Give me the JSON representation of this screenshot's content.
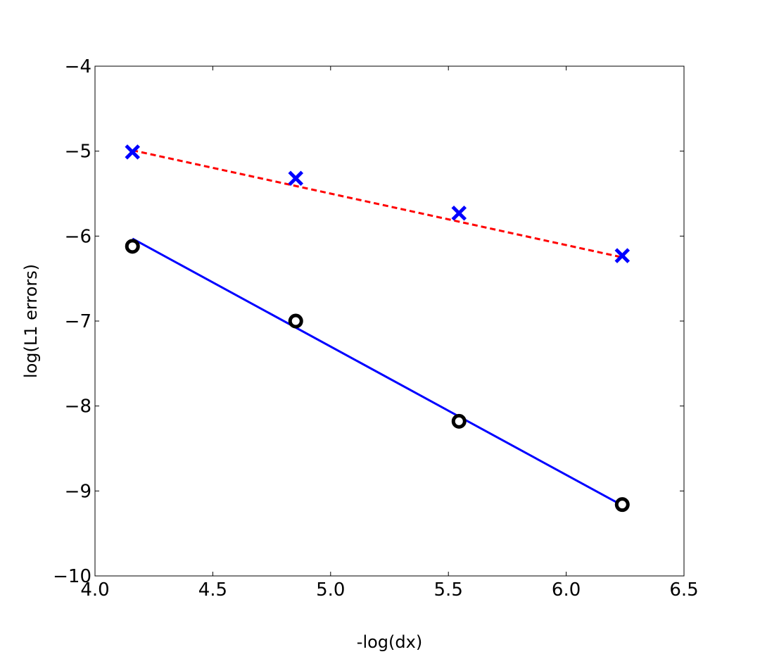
{
  "chart_data": {
    "type": "line",
    "title": "",
    "xlabel": "-log(dx)",
    "ylabel": "log(L1 errors)",
    "xlim": [
      4.0,
      6.5
    ],
    "ylim": [
      -10,
      -4
    ],
    "xticks": [
      "4.0",
      "4.5",
      "5.0",
      "5.5",
      "6.0",
      "6.5"
    ],
    "xtick_values": [
      4.0,
      4.5,
      5.0,
      5.5,
      6.0,
      6.5
    ],
    "yticks": [
      "−10",
      "−9",
      "−8",
      "−7",
      "−6",
      "−5",
      "−4"
    ],
    "ytick_values": [
      -10,
      -9,
      -8,
      -7,
      -6,
      -5,
      -4
    ],
    "grid": false,
    "legend": "none",
    "series": [
      {
        "kind": "markers",
        "marker": "x",
        "color": "#0000ff",
        "x": [
          4.159,
          4.852,
          5.545,
          6.238
        ],
        "y": [
          -5.01,
          -5.32,
          -5.73,
          -6.23
        ]
      },
      {
        "kind": "line",
        "style": "dashed",
        "color": "#ff0000",
        "x": [
          4.159,
          6.238
        ],
        "y": [
          -4.99,
          -6.25
        ]
      },
      {
        "kind": "markers",
        "marker": "o",
        "color": "#000000",
        "x": [
          4.159,
          4.852,
          5.545,
          6.238
        ],
        "y": [
          -6.12,
          -7.0,
          -8.18,
          -9.16
        ]
      },
      {
        "kind": "line",
        "style": "solid",
        "color": "#0000ff",
        "x": [
          4.159,
          6.238
        ],
        "y": [
          -6.03,
          -9.17
        ]
      }
    ]
  }
}
